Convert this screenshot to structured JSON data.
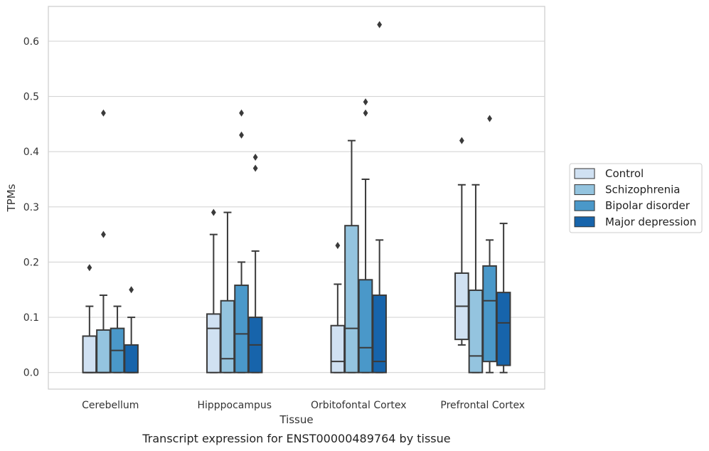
{
  "caption": "Transcript expression for ENST00000489764 by tissue",
  "chart_data": {
    "type": "box",
    "xlabel": "Tissue",
    "ylabel": "TPMs",
    "ylim": [
      -0.03,
      0.663
    ],
    "yticks": [
      "0.0",
      "0.1",
      "0.2",
      "0.3",
      "0.4",
      "0.5",
      "0.6"
    ],
    "grid": true,
    "legend_position": "right",
    "categories": [
      "Cerebellum",
      "Hipppocampus",
      "Orbitofontal Cortex",
      "Prefrontal Cortex"
    ],
    "series": [
      {
        "name": "Control",
        "color": "#d0e1f2",
        "boxes": [
          {
            "whislo": 0.0,
            "q1": 0.0,
            "med": 0.0,
            "q3": 0.066,
            "whishi": 0.12,
            "fliers": [
              0.19
            ]
          },
          {
            "whislo": 0.0,
            "q1": 0.0,
            "med": 0.08,
            "q3": 0.106,
            "whishi": 0.25,
            "fliers": [
              0.29
            ]
          },
          {
            "whislo": 0.0,
            "q1": 0.0,
            "med": 0.02,
            "q3": 0.085,
            "whishi": 0.16,
            "fliers": [
              0.23
            ]
          },
          {
            "whislo": 0.05,
            "q1": 0.06,
            "med": 0.12,
            "q3": 0.18,
            "whishi": 0.34,
            "fliers": [
              0.42
            ]
          }
        ]
      },
      {
        "name": "Schizophrenia",
        "color": "#94c4df",
        "boxes": [
          {
            "whislo": 0.0,
            "q1": 0.0,
            "med": 0.0,
            "q3": 0.077,
            "whishi": 0.14,
            "fliers": [
              0.25,
              0.47
            ]
          },
          {
            "whislo": 0.0,
            "q1": 0.0,
            "med": 0.025,
            "q3": 0.13,
            "whishi": 0.29,
            "fliers": []
          },
          {
            "whislo": 0.0,
            "q1": 0.0,
            "med": 0.08,
            "q3": 0.266,
            "whishi": 0.42,
            "fliers": []
          },
          {
            "whislo": 0.0,
            "q1": 0.0,
            "med": 0.03,
            "q3": 0.149,
            "whishi": 0.34,
            "fliers": []
          }
        ]
      },
      {
        "name": "Bipolar disorder",
        "color": "#4a98c9",
        "boxes": [
          {
            "whislo": 0.0,
            "q1": 0.0,
            "med": 0.04,
            "q3": 0.08,
            "whishi": 0.12,
            "fliers": []
          },
          {
            "whislo": 0.0,
            "q1": 0.0,
            "med": 0.07,
            "q3": 0.158,
            "whishi": 0.2,
            "fliers": [
              0.43,
              0.47
            ]
          },
          {
            "whislo": 0.0,
            "q1": 0.0,
            "med": 0.045,
            "q3": 0.168,
            "whishi": 0.35,
            "fliers": [
              0.47,
              0.49
            ]
          },
          {
            "whislo": 0.0,
            "q1": 0.02,
            "med": 0.13,
            "q3": 0.193,
            "whishi": 0.24,
            "fliers": [
              0.46
            ]
          }
        ]
      },
      {
        "name": "Major depression",
        "color": "#1764ab",
        "boxes": [
          {
            "whislo": 0.0,
            "q1": 0.0,
            "med": 0.0,
            "q3": 0.05,
            "whishi": 0.1,
            "fliers": [
              0.15
            ]
          },
          {
            "whislo": 0.0,
            "q1": 0.0,
            "med": 0.05,
            "q3": 0.1,
            "whishi": 0.22,
            "fliers": [
              0.37,
              0.39
            ]
          },
          {
            "whislo": 0.0,
            "q1": 0.0,
            "med": 0.02,
            "q3": 0.14,
            "whishi": 0.24,
            "fliers": [
              0.63
            ]
          },
          {
            "whislo": 0.0,
            "q1": 0.013,
            "med": 0.09,
            "q3": 0.145,
            "whishi": 0.27,
            "fliers": []
          }
        ]
      }
    ]
  }
}
